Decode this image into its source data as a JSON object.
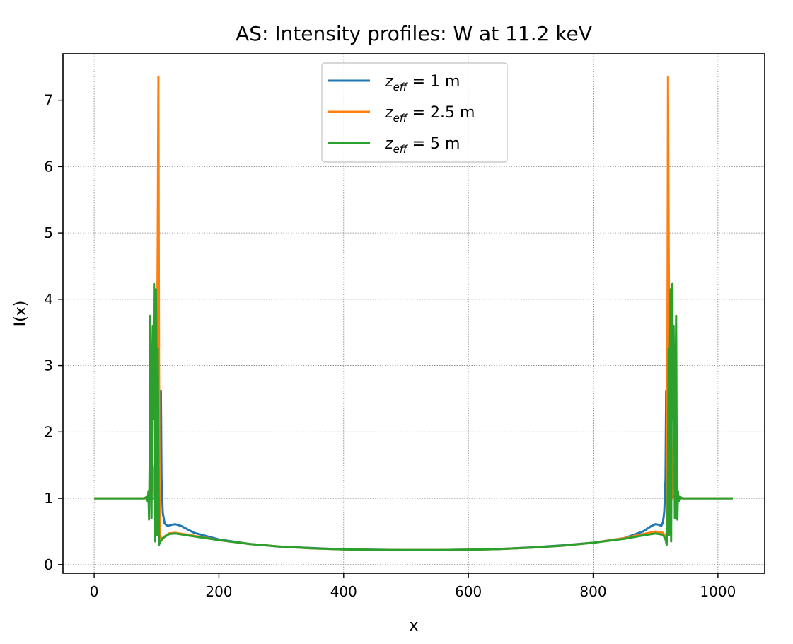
{
  "chart_data": {
    "type": "line",
    "title": "AS: Intensity profiles: W at 11.2 keV",
    "xlabel": "x",
    "ylabel": "I(x)",
    "xlim": [
      -50,
      1075
    ],
    "ylim": [
      -0.13,
      7.7
    ],
    "xticks": [
      0,
      200,
      400,
      600,
      800,
      1000
    ],
    "yticks": [
      0,
      1,
      2,
      3,
      4,
      5,
      6,
      7
    ],
    "grid": true,
    "legend_position": "top-center",
    "series": [
      {
        "name": "z_eff = 1 m",
        "legend": {
          "prefix": "z",
          "sub": "eff",
          "suffix": " = 1 m"
        },
        "color": "#1f77b4",
        "points": [
          [
            0,
            1.0
          ],
          [
            85,
            1.0
          ],
          [
            95,
            1.0
          ],
          [
            100,
            1.05
          ],
          [
            103,
            1.4
          ],
          [
            105,
            2.0
          ],
          [
            107,
            2.62
          ],
          [
            108,
            1.3
          ],
          [
            110,
            0.78
          ],
          [
            113,
            0.62
          ],
          [
            118,
            0.58
          ],
          [
            124,
            0.6
          ],
          [
            130,
            0.61
          ],
          [
            140,
            0.58
          ],
          [
            160,
            0.48
          ],
          [
            200,
            0.38
          ],
          [
            250,
            0.31
          ],
          [
            300,
            0.27
          ],
          [
            350,
            0.25
          ],
          [
            400,
            0.23
          ],
          [
            450,
            0.225
          ],
          [
            500,
            0.22
          ],
          [
            550,
            0.22
          ],
          [
            600,
            0.225
          ],
          [
            650,
            0.235
          ],
          [
            700,
            0.26
          ],
          [
            750,
            0.29
          ],
          [
            800,
            0.33
          ],
          [
            850,
            0.4
          ],
          [
            880,
            0.5
          ],
          [
            893,
            0.58
          ],
          [
            900,
            0.61
          ],
          [
            906,
            0.6
          ],
          [
            909,
            0.58
          ],
          [
            912,
            0.64
          ],
          [
            914,
            0.8
          ],
          [
            916,
            1.3
          ],
          [
            917,
            2.62
          ],
          [
            918,
            2.3
          ],
          [
            920,
            1.5
          ],
          [
            925,
            1.05
          ],
          [
            935,
            1.0
          ],
          [
            1024,
            1.0
          ]
        ]
      },
      {
        "name": "z_eff = 2.5 m",
        "legend": {
          "prefix": "z",
          "sub": "eff",
          "suffix": " = 2.5 m"
        },
        "color": "#ff7f0e",
        "points": [
          [
            0,
            1.0
          ],
          [
            85,
            1.0
          ],
          [
            90,
            1.1
          ],
          [
            93,
            1.5
          ],
          [
            96,
            1.0
          ],
          [
            98,
            2.2
          ],
          [
            100,
            0.9
          ],
          [
            101,
            3.3
          ],
          [
            102,
            5.0
          ],
          [
            103,
            7.35
          ],
          [
            104,
            3.0
          ],
          [
            105,
            0.5
          ],
          [
            108,
            0.36
          ],
          [
            112,
            0.42
          ],
          [
            120,
            0.47
          ],
          [
            130,
            0.48
          ],
          [
            150,
            0.45
          ],
          [
            200,
            0.37
          ],
          [
            250,
            0.31
          ],
          [
            300,
            0.27
          ],
          [
            350,
            0.245
          ],
          [
            400,
            0.23
          ],
          [
            450,
            0.222
          ],
          [
            500,
            0.22
          ],
          [
            550,
            0.22
          ],
          [
            600,
            0.225
          ],
          [
            650,
            0.235
          ],
          [
            700,
            0.255
          ],
          [
            750,
            0.285
          ],
          [
            800,
            0.33
          ],
          [
            850,
            0.4
          ],
          [
            880,
            0.46
          ],
          [
            900,
            0.5
          ],
          [
            912,
            0.48
          ],
          [
            916,
            0.4
          ],
          [
            918,
            0.5
          ],
          [
            919,
            3.0
          ],
          [
            920,
            7.35
          ],
          [
            921,
            5.0
          ],
          [
            922,
            3.3
          ],
          [
            923,
            0.9
          ],
          [
            925,
            2.2
          ],
          [
            927,
            1.0
          ],
          [
            930,
            1.5
          ],
          [
            933,
            1.1
          ],
          [
            938,
            1.0
          ],
          [
            1024,
            1.0
          ]
        ]
      },
      {
        "name": "z_eff = 5 m",
        "legend": {
          "prefix": "z",
          "sub": "eff",
          "suffix": " = 5 m"
        },
        "color": "#2ca02c",
        "points": [
          [
            0,
            1.0
          ],
          [
            80,
            1.0
          ],
          [
            84,
            1.02
          ],
          [
            86,
            0.95
          ],
          [
            87,
            1.1
          ],
          [
            88,
            0.68
          ],
          [
            89,
            1.6
          ],
          [
            90,
            3.75
          ],
          [
            91,
            2.5
          ],
          [
            92,
            0.7
          ],
          [
            93,
            2.4
          ],
          [
            94,
            3.6
          ],
          [
            95,
            2.2
          ],
          [
            96,
            4.23
          ],
          [
            97,
            2.8
          ],
          [
            98,
            0.35
          ],
          [
            99,
            4.15
          ],
          [
            100,
            3.0
          ],
          [
            101,
            0.45
          ],
          [
            102,
            3.25
          ],
          [
            103,
            1.5
          ],
          [
            104,
            0.3
          ],
          [
            106,
            0.35
          ],
          [
            110,
            0.4
          ],
          [
            120,
            0.46
          ],
          [
            130,
            0.47
          ],
          [
            150,
            0.44
          ],
          [
            200,
            0.37
          ],
          [
            250,
            0.31
          ],
          [
            300,
            0.27
          ],
          [
            350,
            0.245
          ],
          [
            400,
            0.23
          ],
          [
            450,
            0.222
          ],
          [
            500,
            0.22
          ],
          [
            550,
            0.22
          ],
          [
            600,
            0.225
          ],
          [
            650,
            0.235
          ],
          [
            700,
            0.255
          ],
          [
            750,
            0.285
          ],
          [
            800,
            0.33
          ],
          [
            850,
            0.39
          ],
          [
            880,
            0.44
          ],
          [
            900,
            0.47
          ],
          [
            912,
            0.45
          ],
          [
            916,
            0.38
          ],
          [
            918,
            0.3
          ],
          [
            919,
            0.45
          ],
          [
            920,
            1.5
          ],
          [
            921,
            3.25
          ],
          [
            922,
            0.45
          ],
          [
            923,
            3.0
          ],
          [
            924,
            4.15
          ],
          [
            925,
            0.35
          ],
          [
            926,
            2.8
          ],
          [
            927,
            4.23
          ],
          [
            928,
            2.2
          ],
          [
            929,
            3.6
          ],
          [
            930,
            2.4
          ],
          [
            931,
            0.7
          ],
          [
            932,
            2.5
          ],
          [
            933,
            3.75
          ],
          [
            934,
            1.6
          ],
          [
            935,
            0.68
          ],
          [
            936,
            1.1
          ],
          [
            937,
            0.95
          ],
          [
            939,
            1.02
          ],
          [
            944,
            1.0
          ],
          [
            1024,
            1.0
          ]
        ]
      }
    ]
  }
}
